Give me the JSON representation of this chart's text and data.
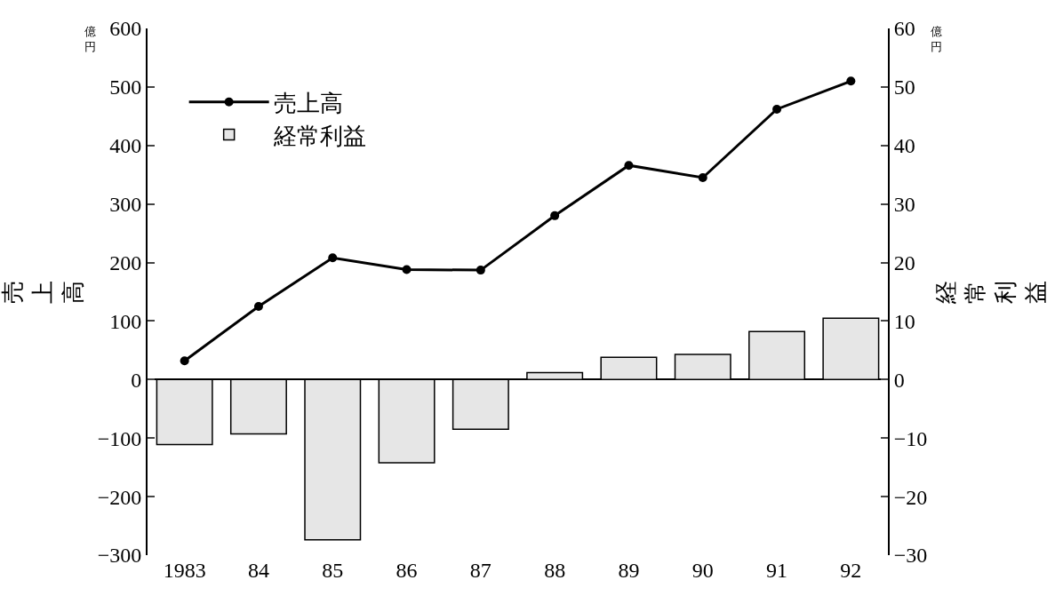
{
  "chart_data": {
    "type": "bar",
    "categories": [
      "1983",
      "84",
      "85",
      "86",
      "87",
      "88",
      "89",
      "90",
      "91",
      "92"
    ],
    "series": [
      {
        "name": "売上高",
        "type": "line",
        "color": "#000000",
        "marker": "circle",
        "line_style": "solid",
        "values": [
          32,
          125,
          208,
          188,
          187,
          280,
          366,
          345,
          462,
          510
        ]
      },
      {
        "name": "経常利益",
        "axis": "y2",
        "color": "#e6e6e6",
        "values": [
          -11.1,
          -9.3,
          -27.4,
          -14.2,
          -8.5,
          1.2,
          3.8,
          4.3,
          8.2,
          10.5
        ]
      }
    ],
    "ylabel": "売上高",
    "y2label": "経常利益",
    "ylim": [
      -300,
      600
    ],
    "yticks": [
      -300,
      -200,
      -100,
      0,
      100,
      200,
      300,
      400,
      500,
      600
    ],
    "y2lim": [
      -30,
      60
    ],
    "y2ticks": [
      -30,
      -20,
      -10,
      0,
      10,
      20,
      30,
      40,
      50,
      60
    ],
    "annotations": [
      "億円",
      "億円"
    ],
    "legend": "top left"
  }
}
